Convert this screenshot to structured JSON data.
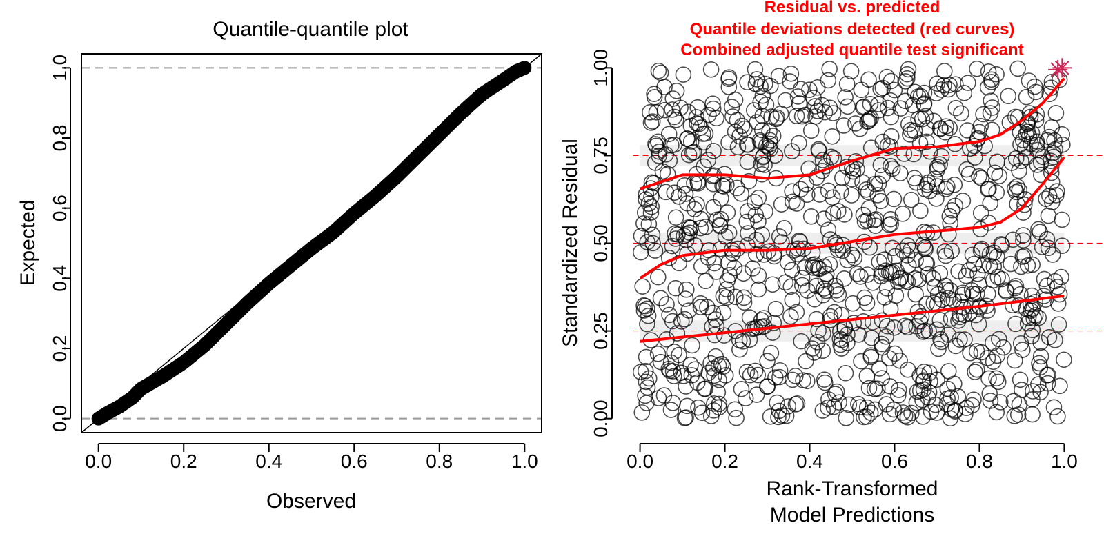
{
  "colors": {
    "points": "#000000",
    "quantile_curve": "#ff0000",
    "reference_line": "#ff0000",
    "dashed_bound": "#999999",
    "ci_band": "#d9d9d9"
  },
  "chart_data": [
    {
      "type": "scatter",
      "title": "Quantile-quantile plot",
      "xlabel": "Observed",
      "ylabel": "Expected",
      "xlim": [
        -0.04,
        1.04
      ],
      "ylim": [
        -0.04,
        1.04
      ],
      "xticks": [
        "0.0",
        "0.2",
        "0.4",
        "0.6",
        "0.8",
        "1.0"
      ],
      "yticks": [
        "0.0",
        "0.2",
        "0.4",
        "0.6",
        "0.8",
        "1.0"
      ],
      "reference_line": "y = x",
      "dashed_hlines": [
        0,
        1
      ],
      "points": [
        [
          0.0,
          0.0
        ],
        [
          0.02,
          0.015
        ],
        [
          0.05,
          0.035
        ],
        [
          0.08,
          0.06
        ],
        [
          0.1,
          0.085
        ],
        [
          0.15,
          0.12
        ],
        [
          0.2,
          0.16
        ],
        [
          0.25,
          0.21
        ],
        [
          0.3,
          0.27
        ],
        [
          0.35,
          0.33
        ],
        [
          0.4,
          0.385
        ],
        [
          0.45,
          0.435
        ],
        [
          0.5,
          0.485
        ],
        [
          0.55,
          0.53
        ],
        [
          0.6,
          0.585
        ],
        [
          0.65,
          0.635
        ],
        [
          0.7,
          0.69
        ],
        [
          0.75,
          0.75
        ],
        [
          0.8,
          0.81
        ],
        [
          0.85,
          0.87
        ],
        [
          0.9,
          0.925
        ],
        [
          0.95,
          0.965
        ],
        [
          0.98,
          0.99
        ],
        [
          1.0,
          1.0
        ]
      ]
    },
    {
      "type": "scatter",
      "title": "Residual vs. predicted",
      "subtitle_lines": [
        "Quantile deviations detected (red curves)",
        "Combined adjusted quantile test significant"
      ],
      "xlabel_lines": [
        "Rank-Transformed",
        "Model Predictions"
      ],
      "ylabel": "Standardized Residual",
      "xlim": [
        -0.04,
        1.04
      ],
      "ylim": [
        -0.04,
        1.04
      ],
      "xticks": [
        "0.0",
        "0.2",
        "0.4",
        "0.6",
        "0.8",
        "1.0"
      ],
      "yticks": [
        "0.00",
        "0.25",
        "0.50",
        "0.75",
        "1.00"
      ],
      "reference_hlines": [
        0.25,
        0.5,
        0.75
      ],
      "n_points": 1000,
      "quantile_curves": [
        {
          "quantile": 0.25,
          "x": [
            0,
            0.2,
            0.4,
            0.6,
            0.8,
            1.0
          ],
          "y": [
            0.22,
            0.245,
            0.27,
            0.295,
            0.32,
            0.35
          ]
        },
        {
          "quantile": 0.5,
          "x": [
            0,
            0.05,
            0.1,
            0.2,
            0.3,
            0.4,
            0.5,
            0.6,
            0.7,
            0.8,
            0.85,
            0.9,
            0.95,
            1.0
          ],
          "y": [
            0.4,
            0.44,
            0.465,
            0.48,
            0.48,
            0.485,
            0.505,
            0.525,
            0.535,
            0.545,
            0.56,
            0.6,
            0.67,
            0.745
          ]
        },
        {
          "quantile": 0.75,
          "x": [
            0,
            0.05,
            0.1,
            0.2,
            0.3,
            0.4,
            0.5,
            0.6,
            0.7,
            0.8,
            0.85,
            0.9,
            0.95,
            1.0
          ],
          "y": [
            0.655,
            0.675,
            0.695,
            0.695,
            0.685,
            0.695,
            0.735,
            0.77,
            0.775,
            0.79,
            0.81,
            0.85,
            0.9,
            0.97
          ]
        }
      ],
      "outliers": [
        [
          0.985,
          0.995
        ],
        [
          0.995,
          1.0
        ]
      ]
    }
  ]
}
